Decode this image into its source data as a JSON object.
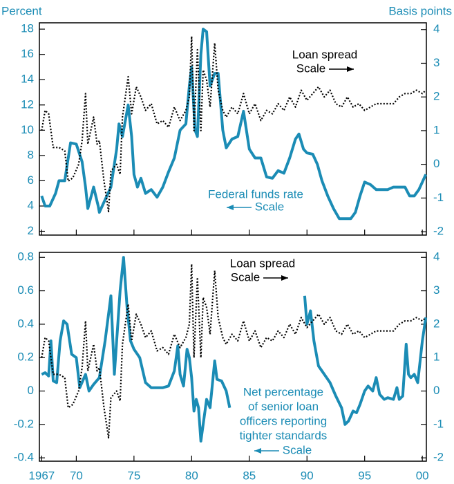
{
  "chart_data": [
    {
      "type": "line",
      "ylabel": "Percent",
      "y2label": "Basis points",
      "ylim": [
        1.7,
        18.5
      ],
      "yticks": [
        2,
        4,
        6,
        8,
        10,
        12,
        14,
        16,
        18
      ],
      "y2lim": [
        -2.1,
        4.2
      ],
      "y2ticks": [
        -2,
        -1,
        0,
        1,
        2,
        3,
        4
      ],
      "xlim": [
        1966.8,
        2000.35
      ],
      "xticks": [
        1967,
        1970,
        1975,
        1980,
        1985,
        1990,
        1995,
        2000
      ],
      "series": [
        {
          "label": [
            "Federal funds rate",
            "Scale"
          ],
          "color": "#1b8cb5",
          "style": "solid",
          "axis": "y",
          "x": [
            1967.0,
            1967.3,
            1967.7,
            1968.2,
            1968.5,
            1969.0,
            1969.5,
            1970.0,
            1970.5,
            1970.8,
            1971.0,
            1971.5,
            1971.9,
            1972.0,
            1972.5,
            1973.0,
            1973.5,
            1973.7,
            1974.0,
            1974.5,
            1974.8,
            1975.0,
            1975.3,
            1975.6,
            1976.0,
            1976.5,
            1977.0,
            1977.5,
            1978.0,
            1978.5,
            1979.0,
            1979.5,
            1979.8,
            1980.0,
            1980.3,
            1980.5,
            1980.8,
            1981.0,
            1981.3,
            1981.6,
            1982.0,
            1982.3,
            1982.7,
            1983.0,
            1983.5,
            1984.0,
            1984.5,
            1985.0,
            1985.5,
            1986.0,
            1986.5,
            1987.0,
            1987.5,
            1988.0,
            1988.5,
            1989.0,
            1989.3,
            1989.7,
            1990.0,
            1990.5,
            1990.9,
            1991.3,
            1991.8,
            1992.3,
            1992.8,
            1993.3,
            1993.8,
            1994.2,
            1994.6,
            1995.0,
            1995.5,
            1996.0,
            1996.5,
            1997.0,
            1997.5,
            1998.0,
            1998.5,
            1998.9,
            1999.3,
            1999.7,
            2000.0,
            2000.3
          ],
          "values": [
            4.8,
            4.0,
            4.0,
            5.0,
            6.0,
            6.0,
            9.0,
            8.9,
            7.5,
            5.5,
            3.8,
            5.5,
            4.0,
            3.5,
            4.5,
            5.5,
            8.5,
            10.5,
            9.5,
            12.0,
            9.5,
            6.5,
            5.5,
            6.2,
            5.0,
            5.3,
            4.7,
            5.5,
            6.7,
            7.8,
            10.0,
            10.5,
            13.5,
            15.0,
            10.0,
            9.5,
            16.0,
            18.0,
            17.8,
            13.5,
            14.5,
            14.5,
            10.0,
            8.6,
            9.3,
            9.5,
            11.5,
            8.5,
            7.8,
            7.8,
            6.3,
            6.2,
            6.8,
            6.6,
            7.8,
            9.3,
            9.7,
            8.5,
            8.2,
            8.1,
            7.3,
            6.0,
            4.8,
            3.8,
            3.0,
            3.0,
            3.0,
            3.5,
            4.8,
            5.9,
            5.7,
            5.3,
            5.3,
            5.3,
            5.5,
            5.5,
            5.5,
            4.8,
            4.8,
            5.3,
            5.9,
            6.5
          ]
        },
        {
          "label": [
            "Loan spread",
            "Scale"
          ],
          "color": "#000000",
          "style": "dotted",
          "axis": "y2",
          "x": [
            1967.0,
            1967.3,
            1967.6,
            1968.0,
            1968.5,
            1969.0,
            1969.3,
            1969.7,
            1970.2,
            1970.5,
            1970.8,
            1971.0,
            1971.5,
            1971.8,
            1972.0,
            1972.4,
            1972.8,
            1973.0,
            1973.5,
            1973.8,
            1974.0,
            1974.5,
            1974.8,
            1975.2,
            1975.6,
            1976.0,
            1976.5,
            1977.0,
            1977.5,
            1978.0,
            1978.5,
            1979.0,
            1979.5,
            1979.8,
            1980.0,
            1980.2,
            1980.5,
            1980.8,
            1981.0,
            1981.3,
            1981.6,
            1982.0,
            1982.3,
            1982.7,
            1983.0,
            1983.5,
            1984.0,
            1984.5,
            1985.0,
            1985.5,
            1986.0,
            1986.5,
            1987.0,
            1987.5,
            1988.0,
            1988.5,
            1989.0,
            1989.5,
            1990.0,
            1990.5,
            1991.0,
            1991.5,
            1992.0,
            1992.5,
            1993.0,
            1993.5,
            1994.0,
            1994.5,
            1995.0,
            1995.5,
            1996.0,
            1996.5,
            1997.0,
            1997.5,
            1998.0,
            1998.5,
            1999.0,
            1999.5,
            2000.0,
            2000.3
          ],
          "values": [
            1.0,
            1.6,
            1.5,
            0.5,
            0.5,
            0.4,
            -0.5,
            -0.4,
            0.0,
            0.7,
            2.1,
            0.6,
            1.4,
            0.6,
            0.7,
            -0.5,
            -1.4,
            -0.2,
            0.0,
            -0.3,
            1.4,
            2.6,
            1.5,
            2.3,
            2.0,
            1.6,
            1.8,
            1.2,
            1.3,
            1.1,
            1.7,
            1.3,
            1.6,
            2.0,
            3.8,
            1.0,
            3.4,
            1.0,
            2.8,
            2.5,
            1.7,
            3.6,
            2.2,
            1.6,
            1.4,
            1.7,
            1.5,
            2.1,
            1.5,
            1.8,
            1.3,
            1.6,
            1.5,
            1.8,
            1.6,
            2.0,
            1.7,
            2.2,
            1.9,
            2.1,
            2.3,
            2.0,
            2.2,
            1.8,
            1.7,
            2.0,
            1.7,
            1.8,
            1.6,
            1.7,
            1.8,
            1.8,
            1.8,
            1.8,
            2.0,
            2.1,
            2.1,
            2.2,
            2.1,
            2.2
          ]
        }
      ]
    },
    {
      "type": "line",
      "ylim": [
        -0.42,
        0.83
      ],
      "yticks": [
        -0.4,
        -0.2,
        0,
        0.2,
        0.4,
        0.6,
        0.8
      ],
      "y2lim": [
        -2.1,
        4.15
      ],
      "y2ticks": [
        -2,
        -1,
        0,
        1,
        2,
        3,
        4
      ],
      "xlim": [
        1966.8,
        2000.35
      ],
      "xticks": [
        {
          "value": 1967,
          "label": "1967"
        },
        {
          "value": 1970,
          "label": "70"
        },
        {
          "value": 1975,
          "label": "75"
        },
        {
          "value": 1980,
          "label": "80"
        },
        {
          "value": 1985,
          "label": "85"
        },
        {
          "value": 1990,
          "label": "90"
        },
        {
          "value": 1995,
          "label": "95"
        },
        {
          "value": 2000,
          "label": "00"
        }
      ],
      "series": [
        {
          "label": [
            "Net percentage",
            "of senior loan",
            "officers reporting",
            "tighter standards",
            "Scale"
          ],
          "color": "#1b8cb5",
          "style": "solid",
          "axis": "y",
          "x": [
            1967.0,
            1967.3,
            1967.6,
            1967.8,
            1968.0,
            1968.3,
            1968.6,
            1968.9,
            1969.2,
            1969.6,
            1970.0,
            1970.3,
            1970.8,
            1971.1,
            1971.5,
            1972.0,
            1972.5,
            1973.0,
            1973.3,
            1973.8,
            1974.1,
            1974.4,
            1974.7,
            1975.0,
            1975.5,
            1976.0,
            1976.5,
            1977.0,
            1977.5,
            1978.0,
            1978.5,
            1978.8,
            1979.0,
            1979.3,
            1979.6,
            1979.8,
            1980.0,
            1980.2,
            1980.4,
            1980.6,
            1980.8,
            1981.0,
            1981.3,
            1981.6,
            1982.0,
            1982.2,
            1982.6,
            1983.0,
            1983.3,
            1986.5,
            1989.8,
            1990.0,
            1990.3,
            1990.6,
            1991.0,
            1991.5,
            1992.0,
            1992.5,
            1993.0,
            1993.3,
            1993.6,
            1994.0,
            1994.3,
            1994.6,
            1995.0,
            1995.3,
            1995.7,
            1996.0,
            1996.3,
            1996.7,
            1997.0,
            1997.5,
            1997.8,
            1998.0,
            1998.3,
            1998.6,
            1998.8,
            1999.0,
            1999.3,
            1999.6,
            2000.0,
            2000.3
          ],
          "values": [
            0.1,
            0.11,
            0.09,
            0.3,
            0.06,
            0.05,
            0.3,
            0.42,
            0.4,
            0.22,
            0.2,
            0.02,
            0.1,
            0.0,
            0.04,
            0.08,
            0.3,
            0.57,
            0.1,
            0.6,
            0.8,
            0.5,
            0.3,
            0.25,
            0.2,
            0.05,
            0.02,
            0.02,
            0.02,
            0.03,
            0.12,
            0.27,
            0.1,
            0.03,
            0.25,
            0.2,
            0.08,
            -0.12,
            -0.05,
            -0.1,
            -0.3,
            -0.2,
            -0.05,
            -0.1,
            0.18,
            0.07,
            0.06,
            0.0,
            -0.1,
            null,
            0.57,
            0.4,
            0.48,
            0.3,
            0.15,
            0.1,
            0.05,
            -0.03,
            -0.1,
            -0.2,
            -0.18,
            -0.12,
            -0.13,
            -0.08,
            0.0,
            0.03,
            0.0,
            0.08,
            -0.02,
            -0.05,
            -0.04,
            -0.05,
            0.02,
            -0.05,
            -0.03,
            0.28,
            0.1,
            0.08,
            0.1,
            0.05,
            0.3,
            0.44
          ]
        },
        {
          "label": [
            "Loan spread",
            "Scale"
          ],
          "color": "#000000",
          "style": "dotted",
          "axis": "y2",
          "x": [
            1967.0,
            1967.3,
            1967.6,
            1968.0,
            1968.5,
            1969.0,
            1969.3,
            1969.7,
            1970.2,
            1970.5,
            1970.8,
            1971.0,
            1971.5,
            1971.8,
            1972.0,
            1972.4,
            1972.8,
            1973.0,
            1973.5,
            1973.8,
            1974.0,
            1974.5,
            1974.8,
            1975.2,
            1975.6,
            1976.0,
            1976.5,
            1977.0,
            1977.5,
            1978.0,
            1978.5,
            1979.0,
            1979.5,
            1979.8,
            1980.0,
            1980.2,
            1980.5,
            1980.8,
            1981.0,
            1981.3,
            1981.6,
            1982.0,
            1982.3,
            1982.7,
            1983.0,
            1983.5,
            1984.0,
            1984.5,
            1985.0,
            1985.5,
            1986.0,
            1986.5,
            1987.0,
            1987.5,
            1988.0,
            1988.5,
            1989.0,
            1989.5,
            1990.0,
            1990.5,
            1991.0,
            1991.5,
            1992.0,
            1992.5,
            1993.0,
            1993.5,
            1994.0,
            1994.5,
            1995.0,
            1995.5,
            1996.0,
            1996.5,
            1997.0,
            1997.5,
            1998.0,
            1998.5,
            1999.0,
            1999.5,
            2000.0,
            2000.3
          ],
          "values": [
            1.0,
            1.6,
            1.5,
            0.5,
            0.5,
            0.4,
            -0.5,
            -0.4,
            0.0,
            0.7,
            2.1,
            0.6,
            1.4,
            0.6,
            0.7,
            -0.5,
            -1.4,
            -0.2,
            0.0,
            -0.3,
            1.4,
            2.6,
            1.5,
            2.3,
            2.0,
            1.6,
            1.8,
            1.2,
            1.3,
            1.1,
            1.7,
            1.3,
            1.6,
            2.0,
            3.8,
            1.0,
            3.4,
            1.0,
            2.8,
            2.5,
            1.7,
            3.6,
            2.2,
            1.6,
            1.4,
            1.7,
            1.5,
            2.1,
            1.5,
            1.8,
            1.3,
            1.6,
            1.5,
            1.8,
            1.6,
            2.0,
            1.7,
            2.2,
            1.9,
            2.1,
            2.3,
            2.0,
            2.2,
            1.8,
            1.7,
            2.0,
            1.7,
            1.8,
            1.6,
            1.7,
            1.8,
            1.8,
            1.8,
            1.8,
            2.0,
            2.1,
            2.1,
            2.2,
            2.1,
            2.2
          ]
        }
      ]
    }
  ]
}
